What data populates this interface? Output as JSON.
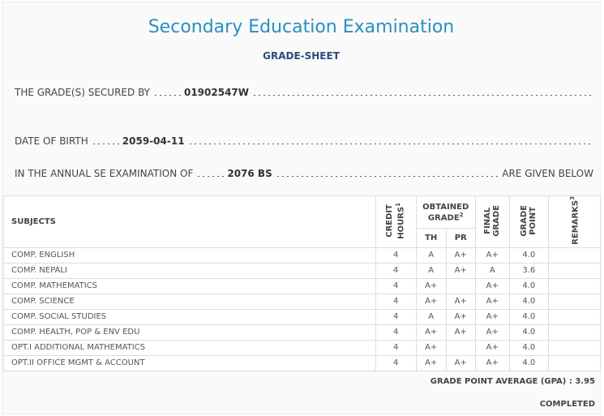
{
  "header": {
    "title": "Secondary Education Examination",
    "subtitle": "GRADE-SHEET"
  },
  "info": [
    {
      "label": "THE GRADE(S) SECURED BY",
      "value": "01902547W"
    },
    {
      "label": "DATE OF BIRTH",
      "value": "2059-04-11"
    },
    {
      "label": "IN THE ANNUAL SE EXAMINATION OF",
      "value": "2076 BS",
      "trailing": "ARE GIVEN BELOW"
    }
  ],
  "table": {
    "columns": {
      "subjects": "SUBJECTS",
      "credit_hours": {
        "text": "CREDIT HOURS",
        "note": "1"
      },
      "obtained_grade": {
        "text": "OBTAINED GRADE",
        "note": "2",
        "th": "TH",
        "pr": "PR"
      },
      "final_grade": "FINAL GRADE",
      "grade_point": "GRADE POINT",
      "remarks": {
        "text": "REMARKS",
        "note": "3"
      }
    },
    "rows": [
      [
        "COMP. ENGLISH",
        "4",
        "A",
        "A+",
        "A+",
        "4.0"
      ],
      [
        "COMP. NEPALI",
        "4",
        "A",
        "A+",
        "A",
        "3.6"
      ],
      [
        "COMP. MATHEMATICS",
        "4",
        "A+",
        null,
        "A+",
        "4.0"
      ],
      [
        "COMP. SCIENCE",
        "4",
        "A+",
        "A+",
        "A+",
        "4.0"
      ],
      [
        "COMP. SOCIAL STUDIES",
        "4",
        "A",
        "A+",
        "A+",
        "4.0"
      ],
      [
        "COMP. HEALTH, POP & ENV EDU",
        "4",
        "A+",
        "A+",
        "A+",
        "4.0"
      ],
      [
        "OPT.I ADDITIONAL MATHEMATICS",
        "4",
        "A+",
        null,
        "A+",
        "4.0"
      ],
      [
        "OPT.II OFFICE MGMT & ACCOUNT",
        "4",
        "A+",
        "A+",
        "A+",
        "4.0"
      ]
    ]
  },
  "footer": {
    "gpa_label": "GRADE POINT AVERAGE (GPA) :",
    "gpa": "3.95",
    "status": "COMPLETED"
  }
}
